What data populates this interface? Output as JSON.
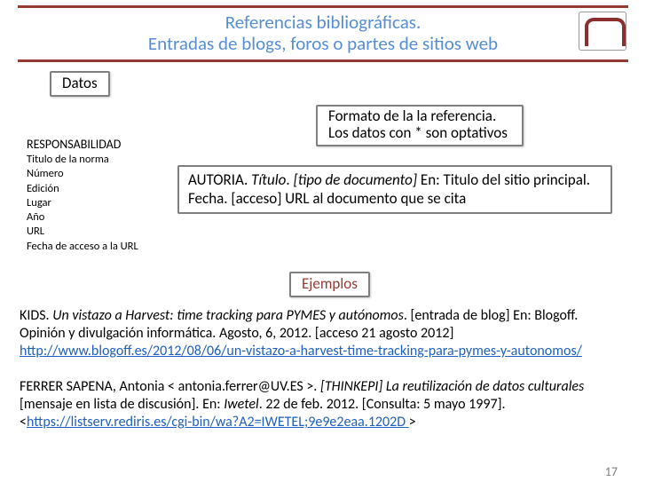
{
  "header": {
    "line1": "Referencias bibliográficas.",
    "line2": "Entradas de blogs, foros o partes de sitios web"
  },
  "tags": {
    "datos": "Datos",
    "formato_l1": "Formato de la la referencia.",
    "formato_l2": "Los datos con * son optativos",
    "ejemplos": "Ejemplos"
  },
  "fields": {
    "f1": "RESPONSABILIDAD",
    "f2": "Titulo de la norma",
    "f3": "Número",
    "f4": "Edición",
    "f5": "Lugar",
    "f6": "Año",
    "f7": "URL",
    "f8": "Fecha de acceso a la URL"
  },
  "format": {
    "seg1": "AUTORIA. ",
    "seg2_italic": "Título",
    "seg3": ". ",
    "seg4_italic": "[tipo de documento]",
    "seg5": " En: Titulo del sitio principal. Fecha. [acceso] URL al documento que se cita"
  },
  "ex1": {
    "p1": "KIDS. ",
    "p2_italic": "Un vistazo a Harvest: time tracking para PYMES y autónomos",
    "p3": ". [entrada de blog] En: Blogoff. Opinión y divulgación informática. Agosto, 6, 2012.  [acceso 21 agosto 2012]",
    "url": "http://www.blogoff.es/2012/08/06/un-vistazo-a-harvest-time-tracking-para-pymes-y-autonomos/"
  },
  "ex2": {
    "p1": "FERRER SAPENA, Antonia < antonia.ferrer@UV.ES >. ",
    "p2_italic": "[THINKEPI] La reutilización de datos culturales",
    "p3": " [mensaje en lista de discusión]. En: ",
    "p4_italic": "Iwetel",
    "p5": ". 22 de feb. 2012. [Consulta: 5 mayo 1997]. <",
    "url": "https://listserv.rediris.es/cgi-bin/wa?A2=IWETEL;9e9e2eaa.1202D ",
    "p6": ">"
  },
  "page_number": "17"
}
